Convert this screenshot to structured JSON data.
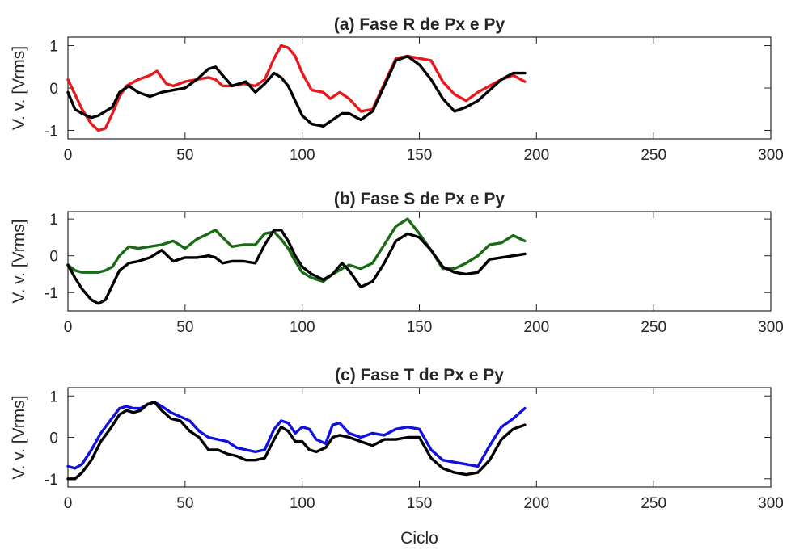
{
  "chart_data": [
    {
      "type": "line",
      "title": "(a) Fase R de Px e Py",
      "ylabel": "V. v. [Vrms]",
      "xlabel": "",
      "xlim": [
        0,
        300
      ],
      "ylim": [
        -1.2,
        1.2
      ],
      "xticks": [
        0,
        50,
        100,
        150,
        200,
        250,
        300
      ],
      "yticks": [
        -1,
        0,
        1
      ],
      "xtick_labels": [
        "0",
        "50",
        "100",
        "150",
        "200",
        "250",
        "300"
      ],
      "ytick_labels": [
        "-1",
        "0",
        "1"
      ],
      "grid": false,
      "series": [
        {
          "color": "#e8191c",
          "x": [
            0,
            3,
            6,
            10,
            13,
            16,
            19,
            22,
            25,
            30,
            35,
            38,
            42,
            45,
            50,
            55,
            60,
            63,
            66,
            70,
            75,
            80,
            84,
            88,
            91,
            94,
            97,
            100,
            104,
            109,
            112,
            116,
            120,
            125,
            130,
            135,
            140,
            145,
            150,
            155,
            160,
            165,
            170,
            175,
            180,
            185,
            190,
            195
          ],
          "y": [
            0.2,
            -0.15,
            -0.5,
            -0.85,
            -1.0,
            -0.95,
            -0.6,
            -0.2,
            0.05,
            0.2,
            0.3,
            0.4,
            0.1,
            0.05,
            0.15,
            0.2,
            0.25,
            0.2,
            0.05,
            0.05,
            0.1,
            0.05,
            0.2,
            0.7,
            1.0,
            0.95,
            0.75,
            0.35,
            -0.05,
            -0.1,
            -0.25,
            -0.1,
            -0.25,
            -0.55,
            -0.5,
            0.1,
            0.7,
            0.75,
            0.7,
            0.65,
            0.15,
            -0.15,
            -0.3,
            -0.1,
            0.05,
            0.2,
            0.3,
            0.15
          ]
        },
        {
          "color": "#000000",
          "x": [
            0,
            3,
            6,
            10,
            13,
            16,
            19,
            22,
            26,
            30,
            35,
            40,
            45,
            50,
            55,
            60,
            63,
            66,
            70,
            73,
            76,
            80,
            84,
            88,
            91,
            94,
            97,
            100,
            104,
            109,
            113,
            117,
            120,
            125,
            130,
            135,
            140,
            145,
            150,
            155,
            160,
            165,
            170,
            175,
            180,
            185,
            190,
            195
          ],
          "y": [
            -0.1,
            -0.5,
            -0.6,
            -0.7,
            -0.65,
            -0.55,
            -0.45,
            -0.1,
            0.05,
            -0.1,
            -0.2,
            -0.1,
            -0.05,
            0.0,
            0.2,
            0.45,
            0.5,
            0.3,
            0.05,
            0.1,
            0.15,
            -0.1,
            0.1,
            0.35,
            0.25,
            0.05,
            -0.3,
            -0.65,
            -0.85,
            -0.9,
            -0.75,
            -0.6,
            -0.6,
            -0.75,
            -0.55,
            0.05,
            0.65,
            0.75,
            0.55,
            0.2,
            -0.25,
            -0.55,
            -0.45,
            -0.3,
            -0.05,
            0.2,
            0.35,
            0.35
          ]
        }
      ]
    },
    {
      "type": "line",
      "title": "(b) Fase S de Px e Py",
      "ylabel": "V. v. [Vrms]",
      "xlabel": "",
      "xlim": [
        0,
        300
      ],
      "ylim": [
        -1.5,
        1.2
      ],
      "xticks": [
        0,
        50,
        100,
        150,
        200,
        250,
        300
      ],
      "yticks": [
        -1,
        0,
        1
      ],
      "xtick_labels": [
        "0",
        "50",
        "100",
        "150",
        "200",
        "250",
        "300"
      ],
      "ytick_labels": [
        "-1",
        "0",
        "1"
      ],
      "grid": false,
      "series": [
        {
          "color": "#1a6a14",
          "x": [
            0,
            3,
            6,
            10,
            13,
            16,
            19,
            22,
            26,
            30,
            35,
            40,
            45,
            50,
            55,
            60,
            63,
            66,
            70,
            75,
            80,
            84,
            88,
            91,
            94,
            97,
            100,
            104,
            109,
            113,
            117,
            120,
            125,
            130,
            135,
            140,
            145,
            150,
            155,
            160,
            165,
            170,
            175,
            180,
            185,
            190,
            195
          ],
          "y": [
            -0.25,
            -0.4,
            -0.45,
            -0.45,
            -0.45,
            -0.4,
            -0.3,
            0.0,
            0.25,
            0.2,
            0.25,
            0.3,
            0.4,
            0.2,
            0.45,
            0.6,
            0.7,
            0.5,
            0.25,
            0.3,
            0.3,
            0.6,
            0.65,
            0.45,
            0.2,
            -0.15,
            -0.45,
            -0.6,
            -0.7,
            -0.5,
            -0.35,
            -0.25,
            -0.35,
            -0.2,
            0.3,
            0.8,
            1.0,
            0.6,
            0.15,
            -0.35,
            -0.35,
            -0.2,
            0.0,
            0.3,
            0.35,
            0.55,
            0.4
          ]
        },
        {
          "color": "#000000",
          "x": [
            0,
            3,
            6,
            10,
            13,
            16,
            19,
            22,
            26,
            30,
            35,
            40,
            45,
            50,
            55,
            60,
            63,
            66,
            70,
            75,
            80,
            84,
            88,
            91,
            94,
            97,
            100,
            104,
            109,
            113,
            117,
            120,
            125,
            130,
            135,
            140,
            145,
            150,
            155,
            160,
            165,
            170,
            175,
            180,
            185,
            190,
            195
          ],
          "y": [
            -0.25,
            -0.6,
            -0.9,
            -1.2,
            -1.3,
            -1.2,
            -0.8,
            -0.4,
            -0.2,
            -0.15,
            -0.05,
            0.15,
            -0.15,
            -0.05,
            -0.05,
            0.0,
            -0.05,
            -0.2,
            -0.15,
            -0.15,
            -0.2,
            0.3,
            0.7,
            0.7,
            0.4,
            0.0,
            -0.3,
            -0.5,
            -0.65,
            -0.5,
            -0.2,
            -0.4,
            -0.85,
            -0.7,
            -0.2,
            0.4,
            0.6,
            0.5,
            0.15,
            -0.3,
            -0.45,
            -0.5,
            -0.45,
            -0.1,
            -0.05,
            0.0,
            0.05
          ]
        }
      ]
    },
    {
      "type": "line",
      "title": "(c) Fase T de Px e Py",
      "ylabel": "V. v. [Vrms]",
      "xlabel": "Ciclo",
      "xlim": [
        0,
        300
      ],
      "ylim": [
        -1.2,
        1.2
      ],
      "xticks": [
        0,
        50,
        100,
        150,
        200,
        250,
        300
      ],
      "yticks": [
        -1,
        0,
        1
      ],
      "xtick_labels": [
        "0",
        "50",
        "100",
        "150",
        "200",
        "250",
        "300"
      ],
      "ytick_labels": [
        "-1",
        "0",
        "1"
      ],
      "grid": false,
      "series": [
        {
          "color": "#1010e0",
          "x": [
            0,
            3,
            6,
            10,
            14,
            18,
            22,
            25,
            28,
            31,
            34,
            37,
            40,
            44,
            48,
            52,
            56,
            60,
            64,
            68,
            72,
            76,
            80,
            84,
            88,
            91,
            94,
            97,
            100,
            103,
            106,
            110,
            113,
            116,
            120,
            125,
            130,
            135,
            140,
            145,
            150,
            155,
            160,
            165,
            170,
            175,
            180,
            185,
            190,
            195
          ],
          "y": [
            -0.7,
            -0.75,
            -0.65,
            -0.3,
            0.1,
            0.4,
            0.7,
            0.75,
            0.7,
            0.7,
            0.8,
            0.85,
            0.75,
            0.6,
            0.5,
            0.4,
            0.15,
            0.0,
            -0.05,
            -0.1,
            -0.25,
            -0.3,
            -0.35,
            -0.3,
            0.2,
            0.4,
            0.35,
            0.1,
            0.25,
            0.2,
            -0.05,
            -0.15,
            0.3,
            0.35,
            0.1,
            0.0,
            0.1,
            0.05,
            0.2,
            0.25,
            0.2,
            -0.3,
            -0.55,
            -0.6,
            -0.65,
            -0.7,
            -0.2,
            0.25,
            0.45,
            0.7
          ]
        },
        {
          "color": "#000000",
          "x": [
            0,
            3,
            6,
            10,
            14,
            18,
            22,
            25,
            28,
            31,
            34,
            37,
            40,
            44,
            48,
            52,
            56,
            60,
            64,
            68,
            72,
            76,
            80,
            84,
            88,
            91,
            94,
            97,
            100,
            103,
            106,
            110,
            113,
            116,
            120,
            125,
            130,
            135,
            140,
            145,
            150,
            155,
            160,
            165,
            170,
            175,
            180,
            185,
            190,
            195
          ],
          "y": [
            -1.0,
            -1.0,
            -0.85,
            -0.55,
            -0.1,
            0.2,
            0.55,
            0.65,
            0.6,
            0.65,
            0.8,
            0.85,
            0.65,
            0.45,
            0.4,
            0.15,
            0.0,
            -0.3,
            -0.3,
            -0.4,
            -0.45,
            -0.55,
            -0.55,
            -0.5,
            -0.05,
            0.25,
            0.15,
            -0.1,
            -0.1,
            -0.3,
            -0.35,
            -0.25,
            0.0,
            0.05,
            0.0,
            -0.1,
            -0.2,
            -0.05,
            -0.05,
            0.0,
            0.0,
            -0.5,
            -0.75,
            -0.85,
            -0.9,
            -0.85,
            -0.55,
            -0.05,
            0.2,
            0.3
          ]
        }
      ]
    }
  ]
}
